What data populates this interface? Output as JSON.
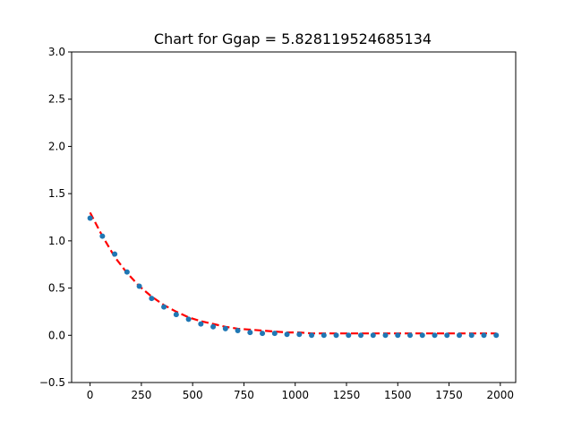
{
  "chart_data": {
    "type": "scatter",
    "title": "Chart for Ggap = 5.828119524685134",
    "xlabel": "",
    "ylabel": "",
    "xlim": [
      -90,
      2075
    ],
    "ylim": [
      -0.5,
      3.0
    ],
    "xticks": [
      0,
      250,
      500,
      750,
      1000,
      1250,
      1500,
      1750,
      2000
    ],
    "xtick_labels": [
      "0",
      "250",
      "500",
      "750",
      "1000",
      "1250",
      "1500",
      "1750",
      "2000"
    ],
    "yticks": [
      -0.5,
      0.0,
      0.5,
      1.0,
      1.5,
      2.0,
      2.5,
      3.0
    ],
    "ytick_labels": [
      "−0.5",
      "0.0",
      "0.5",
      "1.0",
      "1.5",
      "2.0",
      "2.5",
      "3.0"
    ],
    "grid": false,
    "series": [
      {
        "kind": "points",
        "color": "#1f77b4",
        "x": [
          0,
          60,
          120,
          180,
          240,
          300,
          360,
          420,
          480,
          540,
          600,
          660,
          720,
          780,
          840,
          900,
          960,
          1020,
          1080,
          1140,
          1200,
          1260,
          1320,
          1380,
          1440,
          1500,
          1560,
          1620,
          1680,
          1740,
          1800,
          1860,
          1920,
          1980
        ],
        "y": [
          1.24,
          1.05,
          0.86,
          0.67,
          0.52,
          0.39,
          0.3,
          0.22,
          0.17,
          0.12,
          0.09,
          0.07,
          0.05,
          0.03,
          0.02,
          0.02,
          0.01,
          0.01,
          0.0,
          0.0,
          0.0,
          0.0,
          0.0,
          0.0,
          0.0,
          0.0,
          0.0,
          0.0,
          0.0,
          0.0,
          0.0,
          0.0,
          0.0,
          0.0
        ]
      },
      {
        "kind": "line",
        "style": "dashed",
        "color": "#ff0000",
        "x": [
          0,
          60,
          120,
          180,
          240,
          300,
          360,
          420,
          480,
          540,
          600,
          660,
          720,
          780,
          840,
          900,
          960,
          1020,
          1080,
          1140,
          1200,
          1260,
          1320,
          1380,
          1440,
          1500,
          1560,
          1620,
          1680,
          1740,
          1800,
          1860,
          1920,
          1980
        ],
        "y": [
          1.3,
          1.05,
          0.83,
          0.66,
          0.52,
          0.41,
          0.32,
          0.25,
          0.19,
          0.15,
          0.12,
          0.09,
          0.07,
          0.06,
          0.05,
          0.04,
          0.03,
          0.03,
          0.02,
          0.02,
          0.02,
          0.02,
          0.02,
          0.02,
          0.02,
          0.02,
          0.02,
          0.02,
          0.02,
          0.02,
          0.02,
          0.02,
          0.02,
          0.02
        ]
      }
    ]
  }
}
